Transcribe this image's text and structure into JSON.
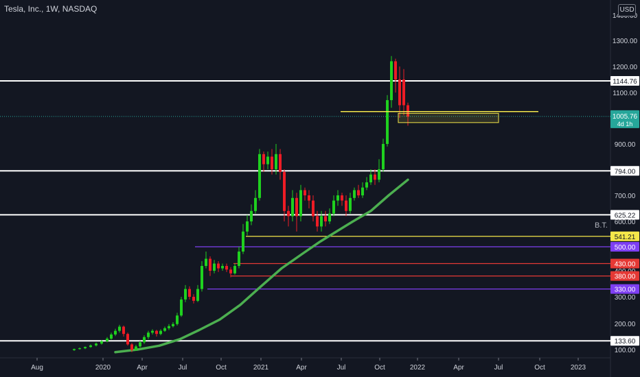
{
  "header": {
    "title": "Tesla, Inc., 1W, NASDAQ",
    "currency": "USD"
  },
  "colors": {
    "bg": "#131722",
    "up": "#1fd11f",
    "down": "#ee1c25",
    "ma": "#4caf50",
    "axis_text": "#d1d4dc"
  },
  "chart_data": {
    "type": "candlestick",
    "title": "",
    "xlabel": "",
    "ylabel": "",
    "ylim": [
      90,
      1450
    ],
    "y_ticks": [
      100,
      200,
      300,
      400,
      500,
      600,
      700,
      800,
      900,
      1000,
      1100,
      1200,
      1300,
      1400
    ],
    "x_ticks": [
      "Aug",
      "2020",
      "Apr",
      "Jul",
      "Oct",
      "2021",
      "Apr",
      "Jul",
      "Oct",
      "2022",
      "Apr",
      "Jul",
      "Oct",
      "2023"
    ],
    "grid": false,
    "current_price": {
      "value": 1005.76,
      "label": "1005.76",
      "countdown": "4d 1h"
    },
    "horizontal_levels": [
      {
        "value": 1144.76,
        "label": "1144.76",
        "color": "#ffffff",
        "text_color": "#131722",
        "start": 0
      },
      {
        "value": 794.0,
        "label": "794.00",
        "color": "#ffffff",
        "text_color": "#131722",
        "start": 0
      },
      {
        "value": 625.22,
        "label": "625.22",
        "color": "#ffffff",
        "text_color": "#131722",
        "start": 0
      },
      {
        "value": 541.21,
        "label": "541.21",
        "color": "#f5e74a",
        "text_color": "#131722",
        "start": 358
      },
      {
        "value": 500.0,
        "label": "500.00",
        "color": "#7e3ff2",
        "text_color": "#ffffff",
        "start": 284
      },
      {
        "value": 430.0,
        "label": "430.00",
        "color": "#e53935",
        "text_color": "#ffffff",
        "start": 340
      },
      {
        "value": 380.0,
        "label": "380.00",
        "color": "#e53935",
        "text_color": "#ffffff",
        "start": 336
      },
      {
        "value": 330.0,
        "label": "330.00",
        "color": "#7e3ff2",
        "text_color": "#ffffff",
        "start": 302
      },
      {
        "value": 133.6,
        "label": "133.60",
        "color": "#ffffff",
        "text_color": "#131722",
        "start": 0
      }
    ],
    "annotations": [
      {
        "text": "B.T.",
        "value": 565,
        "x": 866
      }
    ],
    "resistance_line": {
      "value": 1025,
      "x1": 496,
      "x2": 784,
      "color": "#f5e74a"
    },
    "zone_box": {
      "x1": 580,
      "x2": 726,
      "y_top": 1018,
      "y_bottom": 982,
      "color": "#f5e74a"
    },
    "moving_average": {
      "name": "",
      "points": [
        [
          168,
          90
        ],
        [
          200,
          100
        ],
        [
          232,
          115
        ],
        [
          262,
          140
        ],
        [
          290,
          175
        ],
        [
          320,
          215
        ],
        [
          350,
          270
        ],
        [
          380,
          340
        ],
        [
          410,
          410
        ],
        [
          440,
          470
        ],
        [
          466,
          520
        ],
        [
          490,
          560
        ],
        [
          514,
          600
        ],
        [
          540,
          640
        ],
        [
          566,
          700
        ],
        [
          594,
          760
        ]
      ]
    },
    "candles": [
      [
        108,
        98,
        102,
        95,
        104
      ],
      [
        116,
        102,
        105,
        100,
        108
      ],
      [
        124,
        105,
        110,
        102,
        112
      ],
      [
        132,
        110,
        116,
        107,
        120
      ],
      [
        140,
        116,
        123,
        112,
        127
      ],
      [
        148,
        123,
        132,
        119,
        137
      ],
      [
        156,
        132,
        142,
        128,
        148
      ],
      [
        162,
        142,
        158,
        138,
        165
      ],
      [
        168,
        158,
        172,
        152,
        180
      ],
      [
        174,
        172,
        188,
        165,
        195
      ],
      [
        180,
        188,
        160,
        150,
        192
      ],
      [
        186,
        160,
        120,
        115,
        165
      ],
      [
        192,
        120,
        98,
        90,
        125
      ],
      [
        198,
        98,
        112,
        95,
        118
      ],
      [
        204,
        112,
        128,
        108,
        134
      ],
      [
        210,
        128,
        148,
        122,
        155
      ],
      [
        216,
        148,
        165,
        140,
        172
      ],
      [
        222,
        165,
        172,
        158,
        178
      ],
      [
        228,
        172,
        160,
        150,
        176
      ],
      [
        234,
        160,
        172,
        155,
        178
      ],
      [
        240,
        172,
        182,
        168,
        188
      ],
      [
        246,
        182,
        190,
        175,
        198
      ],
      [
        252,
        190,
        198,
        185,
        205
      ],
      [
        258,
        198,
        230,
        192,
        240
      ],
      [
        264,
        230,
        290,
        225,
        300
      ],
      [
        270,
        290,
        330,
        280,
        345
      ],
      [
        276,
        330,
        300,
        290,
        340
      ],
      [
        282,
        300,
        285,
        275,
        310
      ],
      [
        288,
        285,
        330,
        280,
        345
      ],
      [
        294,
        330,
        420,
        320,
        440
      ],
      [
        300,
        420,
        450,
        410,
        480
      ],
      [
        306,
        450,
        400,
        380,
        460
      ],
      [
        312,
        400,
        430,
        390,
        445
      ],
      [
        318,
        430,
        410,
        395,
        440
      ],
      [
        324,
        410,
        420,
        400,
        430
      ],
      [
        330,
        420,
        405,
        395,
        430
      ],
      [
        336,
        405,
        390,
        375,
        415
      ],
      [
        342,
        390,
        420,
        385,
        430
      ],
      [
        348,
        420,
        480,
        410,
        500
      ],
      [
        354,
        480,
        560,
        470,
        590
      ],
      [
        360,
        560,
        600,
        545,
        625
      ],
      [
        366,
        600,
        640,
        585,
        665
      ],
      [
        372,
        640,
        690,
        630,
        720
      ],
      [
        378,
        690,
        860,
        680,
        880
      ],
      [
        384,
        860,
        820,
        790,
        870
      ],
      [
        390,
        820,
        850,
        800,
        870
      ],
      [
        396,
        850,
        800,
        780,
        880
      ],
      [
        402,
        800,
        860,
        780,
        900
      ],
      [
        408,
        860,
        790,
        760,
        880
      ],
      [
        414,
        790,
        640,
        600,
        800
      ],
      [
        420,
        640,
        620,
        580,
        660
      ],
      [
        426,
        620,
        690,
        600,
        720
      ],
      [
        432,
        690,
        620,
        560,
        710
      ],
      [
        438,
        620,
        720,
        600,
        740
      ],
      [
        444,
        720,
        700,
        680,
        730
      ],
      [
        450,
        700,
        680,
        650,
        720
      ],
      [
        456,
        680,
        620,
        600,
        700
      ],
      [
        462,
        620,
        580,
        560,
        640
      ],
      [
        468,
        580,
        620,
        560,
        640
      ],
      [
        474,
        620,
        600,
        580,
        640
      ],
      [
        480,
        600,
        630,
        590,
        650
      ],
      [
        486,
        630,
        680,
        620,
        700
      ],
      [
        492,
        680,
        700,
        660,
        720
      ],
      [
        498,
        700,
        680,
        660,
        710
      ],
      [
        504,
        680,
        640,
        620,
        700
      ],
      [
        510,
        640,
        690,
        630,
        710
      ],
      [
        516,
        690,
        720,
        680,
        730
      ],
      [
        522,
        720,
        700,
        690,
        740
      ],
      [
        528,
        700,
        730,
        690,
        750
      ],
      [
        534,
        730,
        750,
        720,
        770
      ],
      [
        540,
        750,
        780,
        740,
        800
      ],
      [
        546,
        780,
        760,
        740,
        800
      ],
      [
        552,
        760,
        800,
        750,
        840
      ],
      [
        558,
        800,
        900,
        790,
        920
      ],
      [
        564,
        900,
        1070,
        890,
        1090
      ],
      [
        570,
        1070,
        1220,
        1040,
        1240
      ],
      [
        576,
        1220,
        1150,
        1100,
        1230
      ],
      [
        582,
        1150,
        1050,
        1000,
        1200
      ],
      [
        588,
        1150,
        1050,
        1010,
        1190
      ],
      [
        594,
        1050,
        1005,
        970,
        1060
      ]
    ]
  }
}
